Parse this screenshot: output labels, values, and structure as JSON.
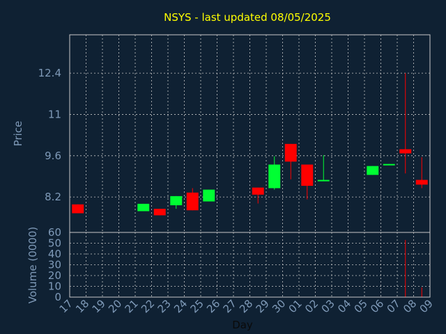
{
  "chart_data": {
    "type": "candlestick",
    "title": "NSYS - last updated 08/05/2025",
    "colors": {
      "up": "#00ff33",
      "down": "#ff0000",
      "background": "#0f2133",
      "title": "#ffff00",
      "axis_text": "#7f9ab8",
      "grid": "#c8c8c8"
    },
    "price_panel": {
      "ylabel": "Price",
      "yticks": [
        "8.2",
        "9.6",
        "11",
        "12.4"
      ],
      "ylim": [
        7.0,
        13.7
      ],
      "grid": true
    },
    "volume_panel": {
      "ylabel": "Volume (0000)",
      "yticks": [
        "0",
        "10",
        "20",
        "30",
        "40",
        "50",
        "60"
      ],
      "ylim": [
        0,
        60
      ],
      "grid": true
    },
    "xlabel": "Day",
    "x_ticks": [
      "17",
      "18",
      "19",
      "20",
      "21",
      "22",
      "23",
      "24",
      "25",
      "26",
      "27",
      "28",
      "29",
      "30",
      "01",
      "02",
      "03",
      "04",
      "05",
      "06",
      "07",
      "08",
      "09"
    ],
    "candles": [
      {
        "day": "17",
        "open": 7.95,
        "close": 7.65,
        "high": 7.95,
        "low": 7.65,
        "volume": 0
      },
      {
        "day": "21",
        "open": 7.72,
        "close": 7.97,
        "high": 7.97,
        "low": 7.72,
        "volume": 0
      },
      {
        "day": "22",
        "open": 7.8,
        "close": 7.58,
        "high": 7.8,
        "low": 7.58,
        "volume": 0
      },
      {
        "day": "23",
        "open": 7.92,
        "close": 8.23,
        "high": 8.23,
        "low": 7.8,
        "volume": 0
      },
      {
        "day": "24",
        "open": 8.35,
        "close": 7.75,
        "high": 8.5,
        "low": 7.75,
        "volume": 0
      },
      {
        "day": "25",
        "open": 8.05,
        "close": 8.45,
        "high": 8.45,
        "low": 8.05,
        "volume": 0
      },
      {
        "day": "28",
        "open": 8.52,
        "close": 8.28,
        "high": 8.52,
        "low": 7.98,
        "volume": 0
      },
      {
        "day": "29",
        "open": 8.5,
        "close": 9.3,
        "high": 9.58,
        "low": 8.45,
        "volume": 0
      },
      {
        "day": "30",
        "open": 10.0,
        "close": 9.4,
        "high": 10.0,
        "low": 8.8,
        "volume": 0
      },
      {
        "day": "01",
        "open": 9.3,
        "close": 8.58,
        "high": 9.3,
        "low": 8.12,
        "volume": 0
      },
      {
        "day": "02",
        "open": 8.75,
        "close": 8.78,
        "high": 9.62,
        "low": 8.75,
        "volume": 0
      },
      {
        "day": "05",
        "open": 8.95,
        "close": 9.25,
        "high": 9.25,
        "low": 8.95,
        "volume": 0
      },
      {
        "day": "06",
        "open": 9.28,
        "close": 9.32,
        "high": 9.32,
        "low": 9.28,
        "volume": 0
      },
      {
        "day": "07",
        "open": 9.82,
        "close": 9.68,
        "high": 12.4,
        "low": 9.0,
        "volume": 53
      },
      {
        "day": "08",
        "open": 8.78,
        "close": 8.62,
        "high": 9.55,
        "low": 8.5,
        "volume": 9
      }
    ]
  }
}
